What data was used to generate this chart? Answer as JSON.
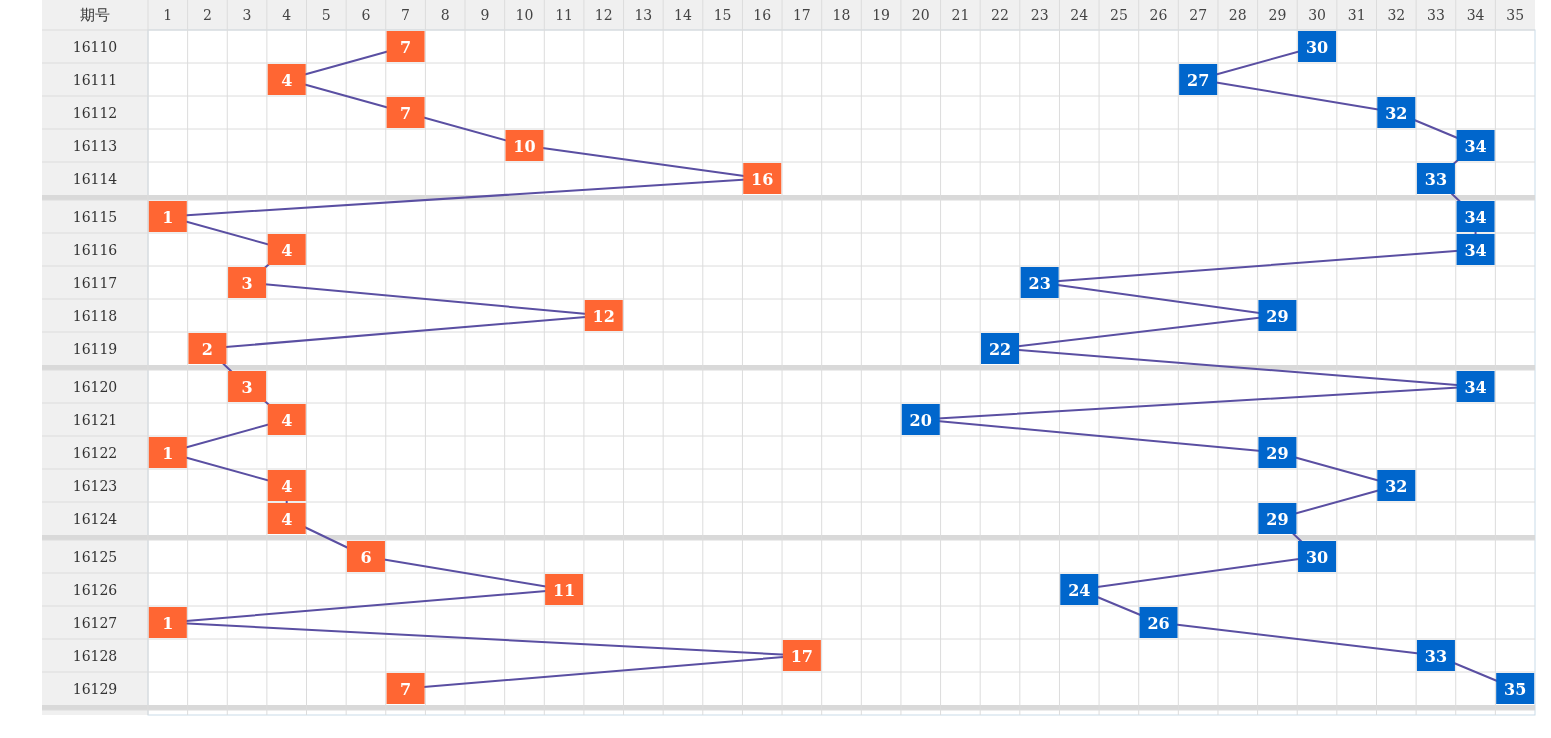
{
  "chart_data": {
    "type": "line",
    "orientation": "horizontal",
    "ylabel": "期号",
    "categories": [
      "16110",
      "16111",
      "16112",
      "16113",
      "16114",
      "16115",
      "16116",
      "16117",
      "16118",
      "16119",
      "16120",
      "16121",
      "16122",
      "16123",
      "16124",
      "16125",
      "16126",
      "16127",
      "16128",
      "16129"
    ],
    "xlim": [
      0.5,
      35.5
    ],
    "xticks": [
      1,
      2,
      3,
      4,
      5,
      6,
      7,
      8,
      9,
      10,
      11,
      12,
      13,
      14,
      15,
      16,
      17,
      18,
      19,
      20,
      21,
      22,
      23,
      24,
      25,
      26,
      27,
      28,
      29,
      30,
      31,
      32,
      33,
      34,
      35
    ],
    "series": [
      {
        "color": "#ff6633",
        "values": [
          7,
          4,
          7,
          10,
          16,
          1,
          4,
          3,
          12,
          2,
          3,
          4,
          1,
          4,
          4,
          6,
          11,
          1,
          17,
          7
        ]
      },
      {
        "color": "#0066cc",
        "values": [
          30,
          27,
          32,
          34,
          33,
          34,
          34,
          23,
          29,
          22,
          34,
          20,
          29,
          32,
          29,
          30,
          24,
          26,
          33,
          35
        ]
      }
    ],
    "marker": "square",
    "data_labels": true,
    "grid": true
  }
}
